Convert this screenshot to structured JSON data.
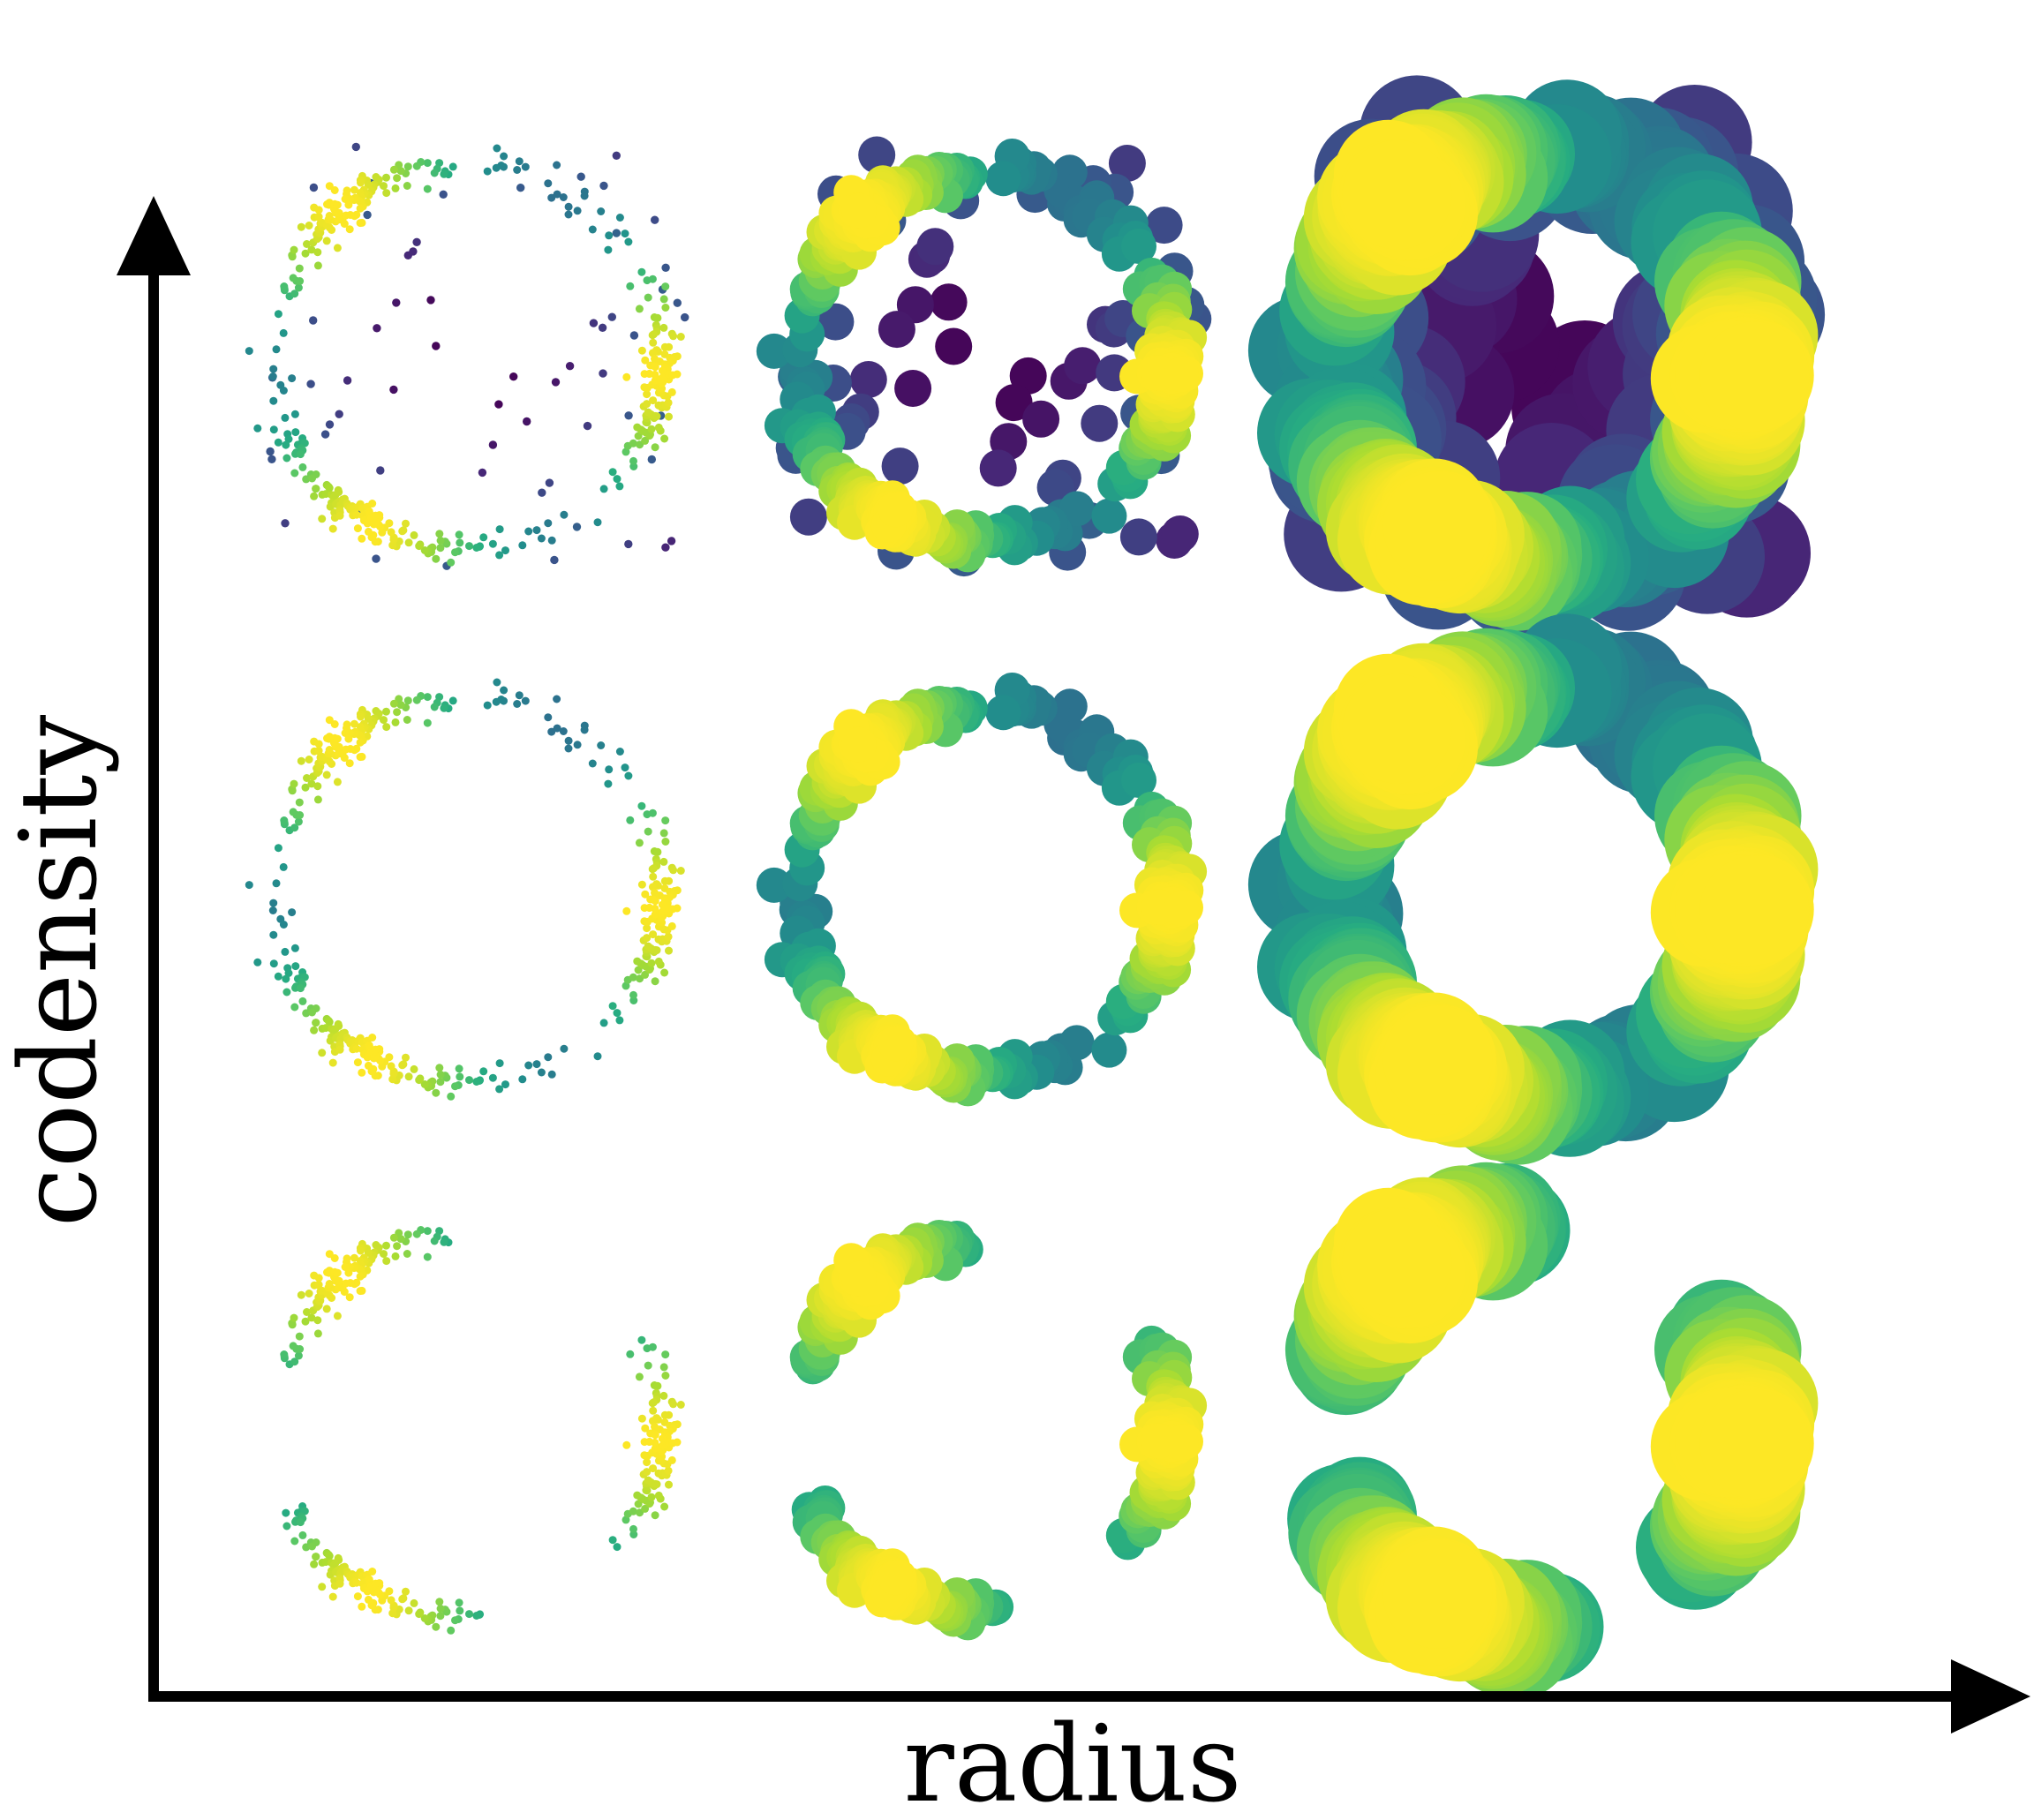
{
  "axes": {
    "x_label": "radius",
    "y_label": "codensity"
  },
  "grid": {
    "columns": 3,
    "rows": 3,
    "colormap": "viridis",
    "background": "#ffffff",
    "axis_color": "#000000"
  },
  "panels": [
    {
      "row": 0,
      "col": 0,
      "name": "panel-radius-small-codensity-high"
    },
    {
      "row": 0,
      "col": 1,
      "name": "panel-radius-medium-codensity-high"
    },
    {
      "row": 0,
      "col": 2,
      "name": "panel-radius-large-codensity-high"
    },
    {
      "row": 1,
      "col": 0,
      "name": "panel-radius-small-codensity-medium"
    },
    {
      "row": 1,
      "col": 1,
      "name": "panel-radius-medium-codensity-medium"
    },
    {
      "row": 1,
      "col": 2,
      "name": "panel-radius-large-codensity-medium"
    },
    {
      "row": 2,
      "col": 0,
      "name": "panel-radius-small-codensity-low"
    },
    {
      "row": 2,
      "col": 1,
      "name": "panel-radius-medium-codensity-low"
    },
    {
      "row": 2,
      "col": 2,
      "name": "panel-radius-large-codensity-low"
    }
  ]
}
